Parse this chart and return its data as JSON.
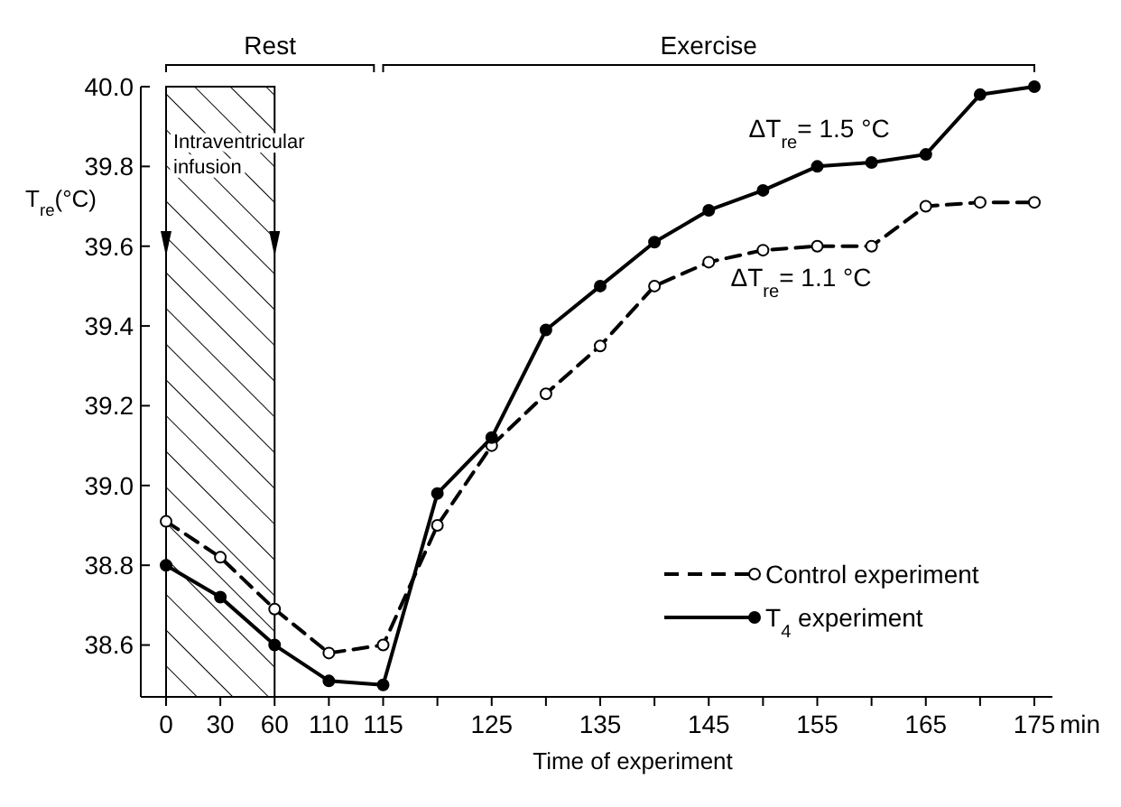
{
  "chart_data": {
    "type": "line",
    "xlabel": "Time of experiment",
    "ylabel": "T$_{re}$(°C)",
    "categories": [
      "0",
      "30",
      "60",
      "110",
      "115",
      null,
      "125",
      null,
      "135",
      null,
      "145",
      null,
      "155",
      null,
      "165",
      null,
      "175"
    ],
    "ylim": [
      38.47,
      40.0
    ],
    "yticks": [
      38.6,
      38.8,
      {
        "value": 39,
        "label": "39.0"
      },
      39.2,
      39.4,
      39.6,
      39.8,
      {
        "value": 40,
        "label": "40.0"
      }
    ],
    "series": [
      {
        "name": "Control experiment",
        "color": "#000000",
        "line_style": "dashed",
        "values": [
          38.91,
          38.82,
          38.69,
          38.58,
          38.6,
          38.9,
          39.1,
          39.23,
          39.35,
          39.5,
          39.56,
          39.59,
          39.6,
          39.6,
          39.7,
          39.71,
          39.71
        ]
      },
      {
        "name": "T$_{4}$ experiment",
        "color": "#000000",
        "line_style": "solid",
        "values": [
          38.8,
          38.72,
          38.6,
          38.51,
          38.5,
          38.98,
          39.12,
          39.39,
          39.5,
          39.61,
          39.69,
          39.74,
          39.8,
          39.81,
          39.83,
          39.98,
          40.0
        ]
      }
    ],
    "marker": "circle",
    "grid": false,
    "legend": "bottom right",
    "bands": [
      {
        "axis": "x",
        "from": "0",
        "to": "60",
        "label": "Intraventricular infusion"
      }
    ],
    "annotations": [
      "Rest",
      "Exercise",
      "ΔT$_{re}$= 1.5 °C",
      "ΔT$_{re}$= 1.1 °C",
      "min"
    ]
  }
}
